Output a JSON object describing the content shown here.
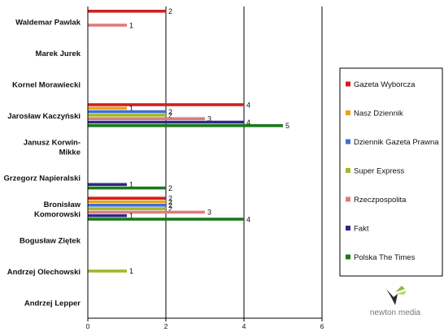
{
  "chart_data": {
    "type": "bar",
    "orientation": "horizontal",
    "categories": [
      "Waldemar Pawlak",
      "Marek Jurek",
      "Kornel Morawiecki",
      "Jarosław Kaczyński",
      "Janusz Korwin-Mikke",
      "Grzegorz Napieralski",
      "Bronisław Komorowski",
      "Bogusław Ziętek",
      "Andrzej Olechowski",
      "Andrzej Lepper"
    ],
    "category_lines": [
      [
        "Waldemar Pawlak"
      ],
      [
        "Marek Jurek"
      ],
      [
        "Kornel Morawiecki"
      ],
      [
        "Jarosław Kaczyński"
      ],
      [
        "Janusz Korwin-",
        "Mikke"
      ],
      [
        "Grzegorz Napieralski"
      ],
      [
        "Bronisław",
        "Komorowski"
      ],
      [
        "Bogusław Ziętek"
      ],
      [
        "Andrzej Olechowski"
      ],
      [
        "Andrzej Lepper"
      ]
    ],
    "series": [
      {
        "name": "Gazeta Wyborcza",
        "color": "#d21f1f",
        "values": [
          2,
          0,
          0,
          4,
          0,
          0,
          2,
          0,
          0,
          0
        ]
      },
      {
        "name": "Nasz Dziennik",
        "color": "#e8a21a",
        "values": [
          0,
          0,
          0,
          1,
          0,
          0,
          2,
          0,
          0,
          0
        ]
      },
      {
        "name": "Dziennik Gazeta Prawna",
        "color": "#3f6fd1",
        "values": [
          0,
          0,
          0,
          2,
          0,
          0,
          2,
          0,
          0,
          0
        ]
      },
      {
        "name": "Super Express",
        "color": "#9dbb2c",
        "values": [
          0,
          0,
          0,
          2,
          0,
          0,
          2,
          0,
          1,
          0
        ]
      },
      {
        "name": "Rzeczpospolita",
        "color": "#e07c7c",
        "values": [
          1,
          0,
          0,
          3,
          0,
          0,
          3,
          0,
          0,
          0
        ]
      },
      {
        "name": "Fakt",
        "color": "#2e2a86",
        "values": [
          0,
          0,
          0,
          4,
          0,
          1,
          1,
          0,
          0,
          0
        ]
      },
      {
        "name": "Polska The Times",
        "color": "#1b7a1b",
        "values": [
          0,
          0,
          0,
          5,
          0,
          2,
          4,
          0,
          0,
          0
        ]
      }
    ],
    "x_ticks": [
      0,
      2,
      4,
      6
    ],
    "xlim": [
      0,
      6
    ],
    "grid": "vertical",
    "legend_position": "right"
  },
  "logo": {
    "text": "newton media"
  }
}
